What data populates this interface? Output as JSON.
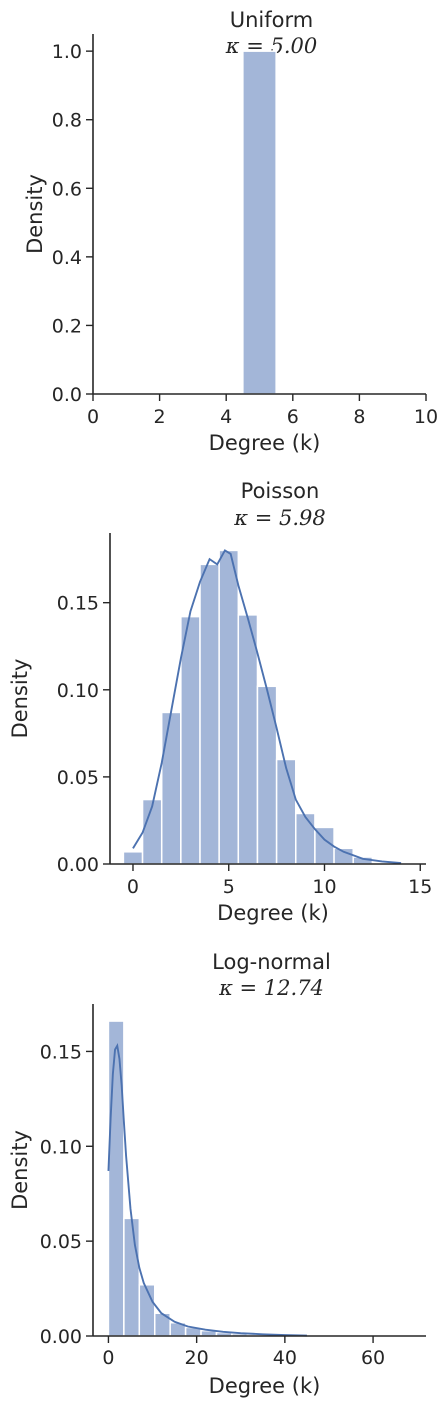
{
  "chart_data": [
    {
      "type": "bar",
      "title": "Uniform",
      "kappa_label": "κ = 5.00",
      "xlabel": "Degree (k)",
      "ylabel": "Density",
      "xlim": [
        0,
        10
      ],
      "ylim": [
        0,
        1.05
      ],
      "xticks": [
        0,
        2,
        4,
        6,
        8,
        10
      ],
      "xtick_labels": [
        "0",
        "2",
        "4",
        "6",
        "8",
        "10"
      ],
      "yticks": [
        0,
        0.2,
        0.4,
        0.6,
        0.8,
        1.0
      ],
      "ytick_labels": [
        "0.0",
        "0.2",
        "0.4",
        "0.6",
        "0.8",
        "1.0"
      ],
      "bin_width": 1,
      "bins": [
        {
          "x": 4.5,
          "w": 1,
          "h": 1.0
        }
      ],
      "kde": []
    },
    {
      "type": "bar",
      "title": "Poisson",
      "kappa_label": "κ = 5.98",
      "xlabel": "Degree (k)",
      "ylabel": "Density",
      "xlim": [
        -1.2,
        15.3
      ],
      "ylim": [
        0,
        0.19
      ],
      "xticks": [
        0,
        5,
        10,
        15
      ],
      "xtick_labels": [
        "0",
        "5",
        "10",
        "15"
      ],
      "yticks": [
        0,
        0.05,
        0.1,
        0.15
      ],
      "ytick_labels": [
        "0.00",
        "0.05",
        "0.10",
        "0.15"
      ],
      "bin_width": 1,
      "bins": [
        {
          "x": -0.5,
          "w": 1,
          "h": 0.007
        },
        {
          "x": 0.5,
          "w": 1,
          "h": 0.037
        },
        {
          "x": 1.5,
          "w": 1,
          "h": 0.087
        },
        {
          "x": 2.5,
          "w": 1,
          "h": 0.142
        },
        {
          "x": 3.5,
          "w": 1,
          "h": 0.172
        },
        {
          "x": 4.5,
          "w": 1,
          "h": 0.18
        },
        {
          "x": 5.5,
          "w": 1,
          "h": 0.143
        },
        {
          "x": 6.5,
          "w": 1,
          "h": 0.102
        },
        {
          "x": 7.5,
          "w": 1,
          "h": 0.06
        },
        {
          "x": 8.5,
          "w": 1,
          "h": 0.029
        },
        {
          "x": 9.5,
          "w": 1,
          "h": 0.021
        },
        {
          "x": 10.5,
          "w": 1,
          "h": 0.009
        },
        {
          "x": 11.5,
          "w": 1,
          "h": 0.004
        }
      ],
      "kde": [
        [
          0.0,
          0.009
        ],
        [
          0.5,
          0.018
        ],
        [
          1.0,
          0.033
        ],
        [
          1.5,
          0.058
        ],
        [
          2.0,
          0.088
        ],
        [
          2.5,
          0.118
        ],
        [
          3.0,
          0.145
        ],
        [
          3.5,
          0.162
        ],
        [
          4.0,
          0.175
        ],
        [
          4.4,
          0.172
        ],
        [
          4.8,
          0.18
        ],
        [
          5.1,
          0.178
        ],
        [
          5.5,
          0.16
        ],
        [
          6.0,
          0.141
        ],
        [
          6.5,
          0.121
        ],
        [
          7.0,
          0.1
        ],
        [
          7.5,
          0.078
        ],
        [
          8.0,
          0.055
        ],
        [
          8.5,
          0.037
        ],
        [
          9.0,
          0.027
        ],
        [
          9.5,
          0.02
        ],
        [
          10.0,
          0.014
        ],
        [
          10.5,
          0.01
        ],
        [
          11.0,
          0.007
        ],
        [
          11.5,
          0.005
        ],
        [
          12.0,
          0.003
        ],
        [
          13.0,
          0.0015
        ],
        [
          14.0,
          0.0005
        ]
      ]
    },
    {
      "type": "bar",
      "title": "Log-normal",
      "kappa_label": "κ = 12.74",
      "xlabel": "Degree (k)",
      "ylabel": "Density",
      "xlim": [
        -3.5,
        72
      ],
      "ylim": [
        0,
        0.175
      ],
      "xticks": [
        0,
        20,
        40,
        60
      ],
      "xtick_labels": [
        "0",
        "20",
        "40",
        "60"
      ],
      "yticks": [
        0,
        0.05,
        0.1,
        0.15
      ],
      "ytick_labels": [
        "0.00",
        "0.05",
        "0.10",
        "0.15"
      ],
      "bin_width": 3.5,
      "bins": [
        {
          "x": 0.0,
          "w": 3.5,
          "h": 0.166
        },
        {
          "x": 3.5,
          "w": 3.5,
          "h": 0.062
        },
        {
          "x": 7.0,
          "w": 3.5,
          "h": 0.027
        },
        {
          "x": 10.5,
          "w": 3.5,
          "h": 0.012
        },
        {
          "x": 14.0,
          "w": 3.5,
          "h": 0.007
        },
        {
          "x": 17.5,
          "w": 3.5,
          "h": 0.0045
        },
        {
          "x": 21.0,
          "w": 3.5,
          "h": 0.0028
        },
        {
          "x": 24.5,
          "w": 3.5,
          "h": 0.0018
        },
        {
          "x": 28.0,
          "w": 3.5,
          "h": 0.0012
        },
        {
          "x": 31.5,
          "w": 3.5,
          "h": 0.0008
        },
        {
          "x": 35.0,
          "w": 3.5,
          "h": 0.0006
        },
        {
          "x": 38.5,
          "w": 3.5,
          "h": 0.0004
        },
        {
          "x": 42.0,
          "w": 3.5,
          "h": 0.0003
        }
      ],
      "kde": [
        [
          0.0,
          0.087
        ],
        [
          0.5,
          0.115
        ],
        [
          1.0,
          0.138
        ],
        [
          1.5,
          0.151
        ],
        [
          2.0,
          0.153
        ],
        [
          2.5,
          0.146
        ],
        [
          3.0,
          0.132
        ],
        [
          3.5,
          0.113
        ],
        [
          4.0,
          0.095
        ],
        [
          5.0,
          0.067
        ],
        [
          6.0,
          0.048
        ],
        [
          7.0,
          0.036
        ],
        [
          8.0,
          0.028
        ],
        [
          10.0,
          0.018
        ],
        [
          12.0,
          0.012
        ],
        [
          15.0,
          0.0075
        ],
        [
          18.0,
          0.005
        ],
        [
          22.0,
          0.0033
        ],
        [
          26.0,
          0.0022
        ],
        [
          30.0,
          0.0015
        ],
        [
          35.0,
          0.0009
        ],
        [
          40.0,
          0.0005
        ],
        [
          45.0,
          0.0002
        ]
      ]
    }
  ]
}
